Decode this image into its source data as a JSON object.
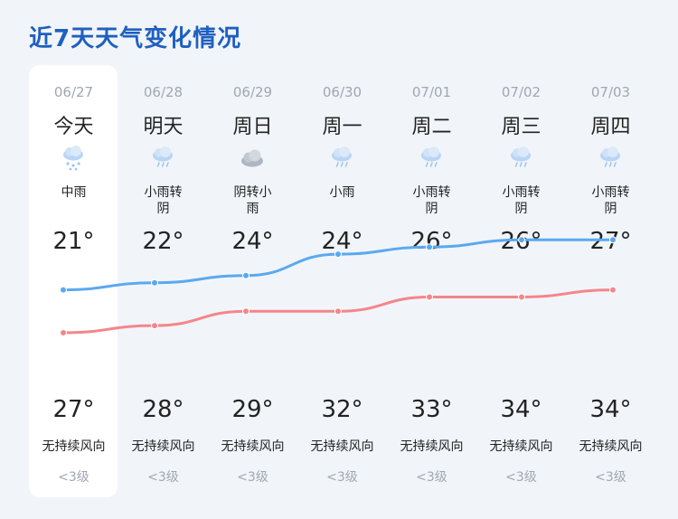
{
  "title": "近7天天气变化情况",
  "colors": {
    "title": "#1f5fbf",
    "high_line": "#f4868a",
    "low_line": "#5aa9ef"
  },
  "days": [
    {
      "date": "06/27",
      "week": "今天",
      "icon": "rain-medium-icon",
      "condition": "中雨",
      "high": "21°",
      "low": "27°",
      "wind": "无持续风向",
      "level": "<3级"
    },
    {
      "date": "06/28",
      "week": "明天",
      "icon": "rain-cloud-icon",
      "condition": "小雨转阴",
      "high": "22°",
      "low": "28°",
      "wind": "无持续风向",
      "level": "<3级"
    },
    {
      "date": "06/29",
      "week": "周日",
      "icon": "cloudy-icon",
      "condition": "阴转小雨",
      "high": "24°",
      "low": "29°",
      "wind": "无持续风向",
      "level": "<3级"
    },
    {
      "date": "06/30",
      "week": "周一",
      "icon": "rain-cloud-icon",
      "condition": "小雨",
      "high": "24°",
      "low": "32°",
      "wind": "无持续风向",
      "level": "<3级"
    },
    {
      "date": "07/01",
      "week": "周二",
      "icon": "rain-cloud-icon",
      "condition": "小雨转阴",
      "high": "26°",
      "low": "33°",
      "wind": "无持续风向",
      "level": "<3级"
    },
    {
      "date": "07/02",
      "week": "周三",
      "icon": "rain-cloud-icon",
      "condition": "小雨转阴",
      "high": "26°",
      "low": "34°",
      "wind": "无持续风向",
      "level": "<3级"
    },
    {
      "date": "07/03",
      "week": "周四",
      "icon": "rain-cloud-icon",
      "condition": "小雨转阴",
      "high": "27°",
      "low": "34°",
      "wind": "无持续风向",
      "level": "<3级"
    }
  ],
  "chart_data": {
    "type": "line",
    "categories": [
      "06/27",
      "06/28",
      "06/29",
      "06/30",
      "07/01",
      "07/02",
      "07/03"
    ],
    "series": [
      {
        "values": [
          21,
          22,
          24,
          24,
          26,
          26,
          27
        ]
      },
      {
        "values": [
          27,
          28,
          29,
          32,
          33,
          34,
          34
        ]
      }
    ]
  }
}
